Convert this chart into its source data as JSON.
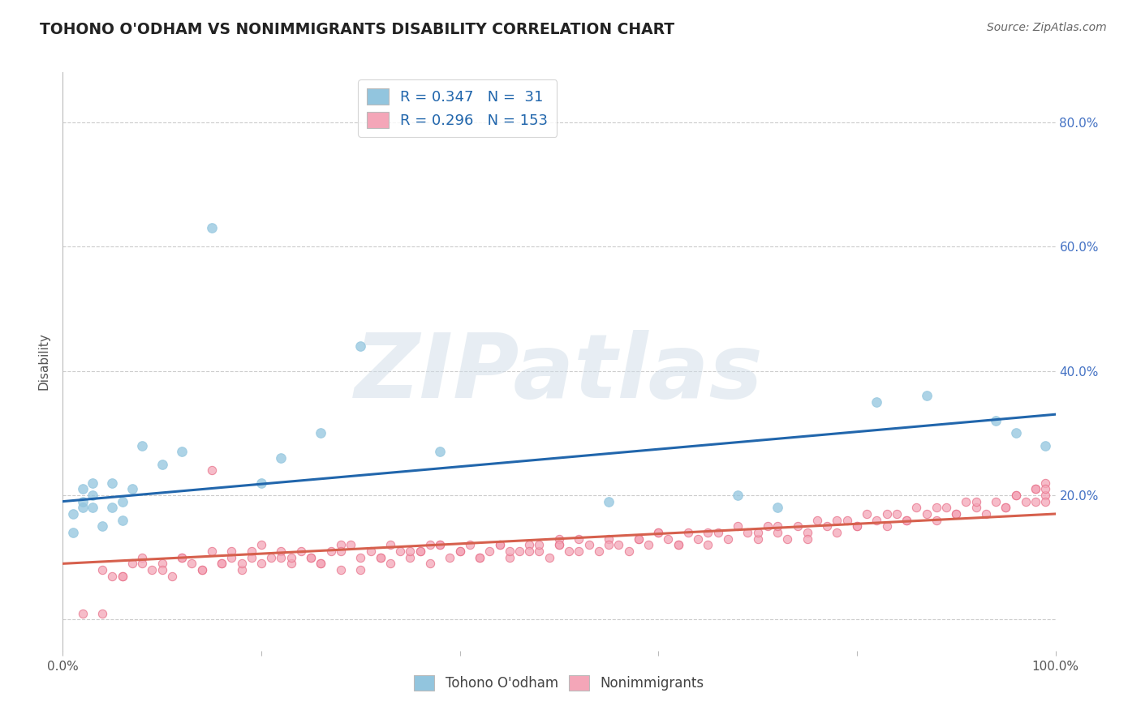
{
  "title": "TOHONO O'ODHAM VS NONIMMIGRANTS DISABILITY CORRELATION CHART",
  "source": "Source: ZipAtlas.com",
  "ylabel": "Disability",
  "xlim": [
    0.0,
    1.0
  ],
  "ylim": [
    -0.05,
    0.88
  ],
  "yticks": [
    0.0,
    0.2,
    0.4,
    0.6,
    0.8
  ],
  "right_ytick_labels": [
    "",
    "20.0%",
    "40.0%",
    "60.0%",
    "80.0%"
  ],
  "xticks": [
    0.0,
    0.2,
    0.4,
    0.6,
    0.8,
    1.0
  ],
  "xtick_labels": [
    "0.0%",
    "",
    "",
    "",
    "",
    "100.0%"
  ],
  "blue_color": "#92c5de",
  "blue_edge_color": "#92c5de",
  "pink_color": "#f4a6b8",
  "pink_edge_color": "#e8728a",
  "blue_line_color": "#2166ac",
  "pink_line_color": "#d6604d",
  "R_blue": 0.347,
  "N_blue": 31,
  "R_pink": 0.296,
  "N_pink": 153,
  "legend_label_blue": "Tohono O'odham",
  "legend_label_pink": "Nonimmigrants",
  "watermark": "ZIPatlas",
  "blue_intercept": 0.19,
  "blue_slope": 0.14,
  "pink_intercept": 0.09,
  "pink_slope": 0.08,
  "blue_x": [
    0.01,
    0.01,
    0.02,
    0.02,
    0.02,
    0.03,
    0.03,
    0.03,
    0.04,
    0.05,
    0.05,
    0.06,
    0.06,
    0.07,
    0.08,
    0.1,
    0.12,
    0.15,
    0.2,
    0.22,
    0.26,
    0.3,
    0.38,
    0.55,
    0.68,
    0.72,
    0.82,
    0.87,
    0.94,
    0.96,
    0.99
  ],
  "blue_y": [
    0.14,
    0.17,
    0.18,
    0.19,
    0.21,
    0.18,
    0.2,
    0.22,
    0.15,
    0.18,
    0.22,
    0.19,
    0.16,
    0.21,
    0.28,
    0.25,
    0.27,
    0.63,
    0.22,
    0.26,
    0.3,
    0.44,
    0.27,
    0.19,
    0.2,
    0.18,
    0.35,
    0.36,
    0.32,
    0.3,
    0.28
  ],
  "pink_x": [
    0.02,
    0.04,
    0.04,
    0.06,
    0.07,
    0.08,
    0.09,
    0.1,
    0.11,
    0.12,
    0.13,
    0.14,
    0.15,
    0.16,
    0.17,
    0.18,
    0.19,
    0.2,
    0.21,
    0.22,
    0.23,
    0.24,
    0.25,
    0.26,
    0.27,
    0.28,
    0.29,
    0.3,
    0.31,
    0.32,
    0.33,
    0.34,
    0.35,
    0.36,
    0.37,
    0.38,
    0.39,
    0.4,
    0.41,
    0.42,
    0.43,
    0.44,
    0.45,
    0.46,
    0.47,
    0.48,
    0.49,
    0.5,
    0.51,
    0.52,
    0.53,
    0.54,
    0.55,
    0.56,
    0.57,
    0.58,
    0.59,
    0.6,
    0.61,
    0.62,
    0.63,
    0.64,
    0.65,
    0.66,
    0.67,
    0.68,
    0.69,
    0.7,
    0.71,
    0.72,
    0.73,
    0.74,
    0.75,
    0.76,
    0.77,
    0.78,
    0.79,
    0.8,
    0.81,
    0.82,
    0.83,
    0.84,
    0.85,
    0.86,
    0.87,
    0.88,
    0.89,
    0.9,
    0.91,
    0.92,
    0.93,
    0.94,
    0.95,
    0.96,
    0.97,
    0.98,
    0.99,
    0.99,
    0.99,
    0.99,
    0.05,
    0.06,
    0.08,
    0.1,
    0.12,
    0.15,
    0.17,
    0.2,
    0.23,
    0.26,
    0.28,
    0.32,
    0.35,
    0.38,
    0.4,
    0.44,
    0.47,
    0.5,
    0.14,
    0.18,
    0.22,
    0.3,
    0.36,
    0.42,
    0.48,
    0.52,
    0.58,
    0.62,
    0.7,
    0.75,
    0.8,
    0.85,
    0.9,
    0.95,
    0.98,
    0.16,
    0.25,
    0.33,
    0.45,
    0.55,
    0.65,
    0.72,
    0.78,
    0.83,
    0.88,
    0.92,
    0.96,
    0.98,
    0.19,
    0.28,
    0.37,
    0.5,
    0.6
  ],
  "pink_y": [
    0.01,
    0.01,
    0.08,
    0.07,
    0.09,
    0.1,
    0.08,
    0.09,
    0.07,
    0.1,
    0.09,
    0.08,
    0.11,
    0.09,
    0.1,
    0.08,
    0.11,
    0.09,
    0.1,
    0.11,
    0.09,
    0.11,
    0.1,
    0.09,
    0.11,
    0.08,
    0.12,
    0.1,
    0.11,
    0.1,
    0.09,
    0.11,
    0.1,
    0.11,
    0.09,
    0.12,
    0.1,
    0.11,
    0.12,
    0.1,
    0.11,
    0.12,
    0.1,
    0.11,
    0.12,
    0.11,
    0.1,
    0.12,
    0.11,
    0.13,
    0.12,
    0.11,
    0.13,
    0.12,
    0.11,
    0.13,
    0.12,
    0.14,
    0.13,
    0.12,
    0.14,
    0.13,
    0.12,
    0.14,
    0.13,
    0.15,
    0.14,
    0.13,
    0.15,
    0.14,
    0.13,
    0.15,
    0.14,
    0.16,
    0.15,
    0.14,
    0.16,
    0.15,
    0.17,
    0.16,
    0.15,
    0.17,
    0.16,
    0.18,
    0.17,
    0.16,
    0.18,
    0.17,
    0.19,
    0.18,
    0.17,
    0.19,
    0.18,
    0.2,
    0.19,
    0.21,
    0.22,
    0.2,
    0.19,
    0.21,
    0.07,
    0.07,
    0.09,
    0.08,
    0.1,
    0.24,
    0.11,
    0.12,
    0.1,
    0.09,
    0.12,
    0.1,
    0.11,
    0.12,
    0.11,
    0.12,
    0.11,
    0.13,
    0.08,
    0.09,
    0.1,
    0.08,
    0.11,
    0.1,
    0.12,
    0.11,
    0.13,
    0.12,
    0.14,
    0.13,
    0.15,
    0.16,
    0.17,
    0.18,
    0.19,
    0.09,
    0.1,
    0.12,
    0.11,
    0.12,
    0.14,
    0.15,
    0.16,
    0.17,
    0.18,
    0.19,
    0.2,
    0.21,
    0.1,
    0.11,
    0.12,
    0.12,
    0.14
  ]
}
